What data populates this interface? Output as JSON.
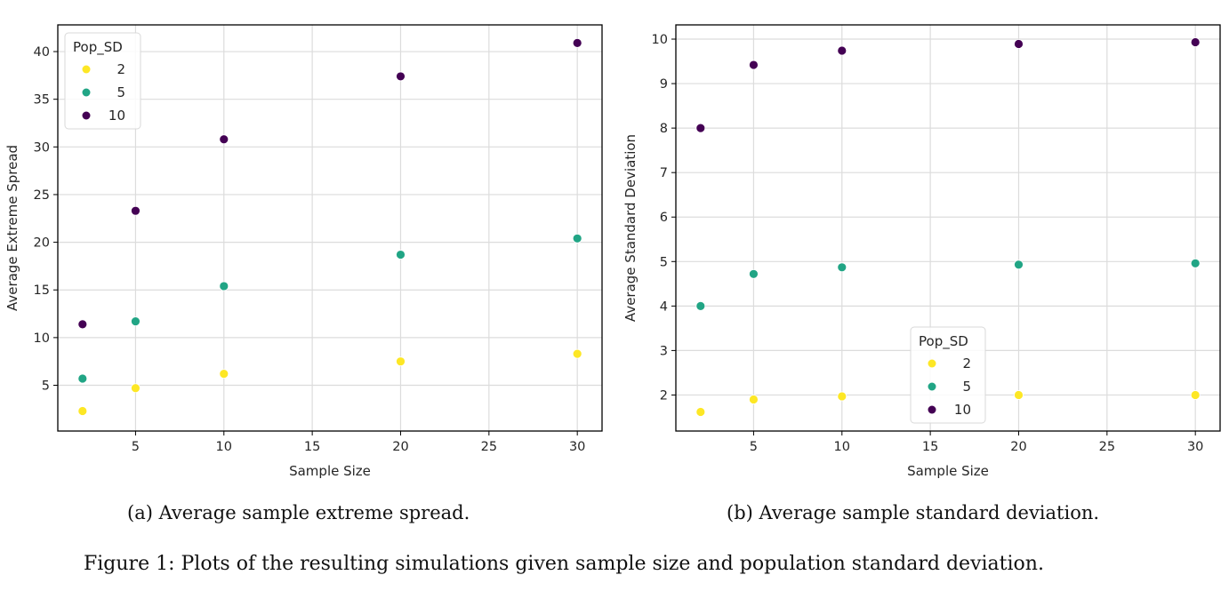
{
  "chart_data": [
    {
      "type": "scatter",
      "id": "a",
      "title": "",
      "xlabel": "Sample Size",
      "ylabel": "Average Extreme Spread",
      "xlim": [
        0.6,
        31.4
      ],
      "ylim": [
        0.2,
        42.8
      ],
      "xticks": [
        5,
        10,
        15,
        20,
        25,
        30
      ],
      "yticks": [
        5,
        10,
        15,
        20,
        25,
        30,
        35,
        40
      ],
      "grid": true,
      "legend": {
        "title": "Pop_SD",
        "placement": "top-left"
      },
      "x": [
        2,
        5,
        10,
        20,
        30
      ],
      "series": [
        {
          "name": "2",
          "color": "#fde725",
          "values": [
            2.3,
            4.7,
            6.2,
            7.5,
            8.3
          ]
        },
        {
          "name": "5",
          "color": "#21a585",
          "values": [
            5.7,
            11.7,
            15.4,
            18.7,
            20.4
          ]
        },
        {
          "name": "10",
          "color": "#440154",
          "values": [
            11.4,
            23.3,
            30.8,
            37.4,
            40.9
          ]
        }
      ]
    },
    {
      "type": "scatter",
      "id": "b",
      "title": "",
      "xlabel": "Sample Size",
      "ylabel": "Average Standard Deviation",
      "xlim": [
        0.6,
        31.4
      ],
      "ylim": [
        1.19,
        10.32
      ],
      "xticks": [
        5,
        10,
        15,
        20,
        25,
        30
      ],
      "yticks": [
        2,
        3,
        4,
        5,
        6,
        7,
        8,
        9,
        10
      ],
      "grid": true,
      "legend": {
        "title": "Pop_SD",
        "placement": "lower-center"
      },
      "x": [
        2,
        5,
        10,
        20,
        30
      ],
      "series": [
        {
          "name": "2",
          "color": "#fde725",
          "values": [
            1.62,
            1.9,
            1.97,
            2.0,
            2.0
          ]
        },
        {
          "name": "5",
          "color": "#21a585",
          "values": [
            4.0,
            4.72,
            4.87,
            4.93,
            4.96
          ]
        },
        {
          "name": "10",
          "color": "#440154",
          "values": [
            8.0,
            9.42,
            9.74,
            9.89,
            9.93
          ]
        }
      ]
    }
  ],
  "captions": {
    "a": "(a) Average sample extreme spread.",
    "b": "(b) Average sample standard deviation.",
    "figure": "Figure 1: Plots of the resulting simulations given sample size and population standard deviation."
  }
}
